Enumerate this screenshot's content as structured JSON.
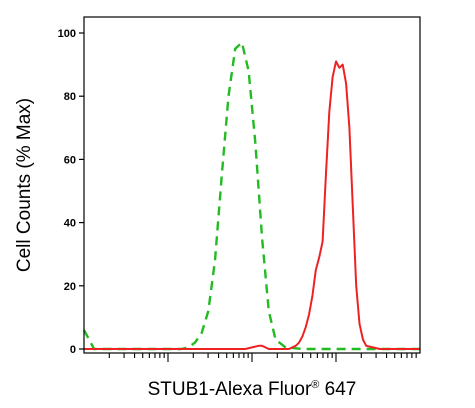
{
  "chart_data": {
    "type": "line",
    "title": "",
    "xlabel": "STUB1-Alexa Fluor",
    "xlabel_mark": "®",
    "xlabel_suffix": " 647",
    "ylabel": "Cell Counts (% Max)",
    "xscale": "log",
    "xlim": [
      0,
      100
    ],
    "ylim": [
      0,
      100
    ],
    "yticks": [
      0,
      20,
      40,
      60,
      80,
      100
    ],
    "ytick_labels": [
      "0",
      "20",
      "40",
      "60",
      "80",
      "100"
    ],
    "grid": false,
    "legend": "none",
    "series": [
      {
        "color": "#22bb22",
        "style": "dashed",
        "x": [
          0,
          3,
          6,
          10,
          14,
          18,
          22,
          26,
          29,
          31,
          33,
          35,
          37,
          39,
          41,
          43,
          45,
          47,
          49,
          51,
          53,
          55,
          57,
          60,
          65,
          70,
          80,
          90,
          100
        ],
        "y": [
          6,
          0,
          0,
          0,
          0,
          0,
          0,
          0,
          0,
          0.5,
          2,
          5,
          12,
          28,
          55,
          80,
          95,
          97,
          88,
          65,
          35,
          12,
          3,
          0.5,
          0,
          0,
          0,
          0,
          0
        ]
      },
      {
        "color": "#ee2222",
        "style": "solid",
        "x": [
          0,
          10,
          20,
          30,
          40,
          48,
          50,
          52,
          53,
          54,
          55,
          56,
          57,
          58,
          59,
          60,
          61,
          62,
          63,
          64,
          65,
          66,
          67,
          68,
          69,
          70,
          71,
          72,
          73,
          74,
          75,
          76,
          77,
          78,
          79,
          80,
          81,
          82,
          83,
          84,
          86,
          88,
          90,
          95,
          100
        ],
        "y": [
          0,
          0,
          0,
          0,
          0,
          0,
          0.5,
          1,
          1,
          0.5,
          0,
          0,
          0,
          0,
          0,
          0,
          0,
          0.5,
          1,
          2,
          4,
          7,
          11,
          17,
          25,
          29,
          34,
          55,
          75,
          86,
          91,
          89,
          90,
          84,
          70,
          45,
          20,
          8,
          3,
          1,
          0.5,
          0,
          0,
          0,
          0
        ]
      }
    ]
  }
}
